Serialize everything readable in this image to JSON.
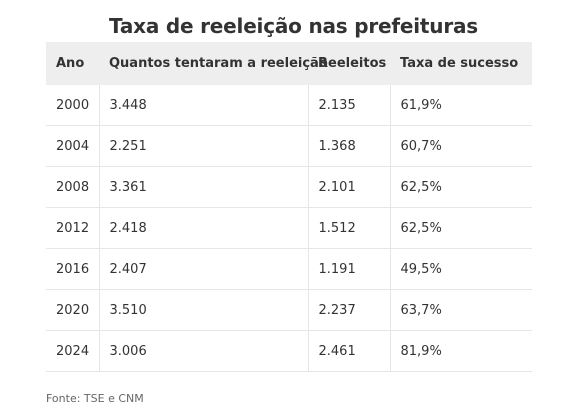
{
  "chart_data": {
    "type": "table",
    "title": "Taxa de reeleição nas prefeituras",
    "columns": [
      "Ano",
      "Quantos tentaram a reeleição",
      "Reeleitos",
      "Taxa de sucesso"
    ],
    "rows": [
      [
        "2000",
        "3.448",
        "2.135",
        "61,9%"
      ],
      [
        "2004",
        "2.251",
        "1.368",
        "60,7%"
      ],
      [
        "2008",
        "3.361",
        "2.101",
        "62,5%"
      ],
      [
        "2012",
        "2.418",
        "1.512",
        "62,5%"
      ],
      [
        "2016",
        "2.407",
        "1.191",
        "49,5%"
      ],
      [
        "2020",
        "3.510",
        "2.237",
        "63,7%"
      ],
      [
        "2024",
        "3.006",
        "2.461",
        "81,9%"
      ]
    ],
    "source": "Fonte: TSE e CNM"
  },
  "colors": {
    "header_background": "#eeeeee",
    "text": "#333333",
    "rule": "#e6e6e6"
  }
}
